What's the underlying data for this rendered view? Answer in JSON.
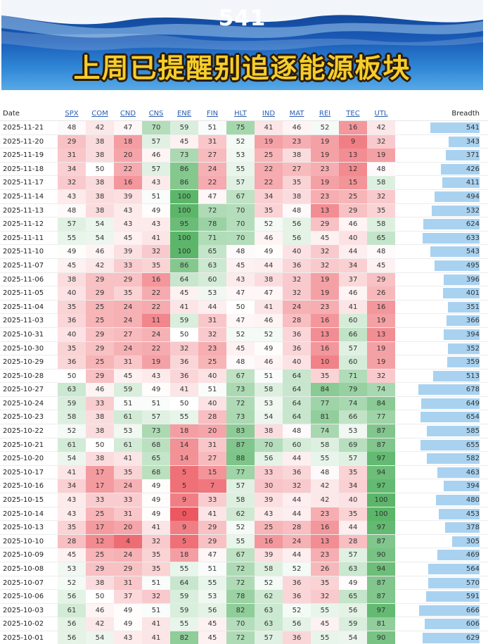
{
  "banner": {
    "number": "541",
    "title": "上周已提醒别追逐能源板块"
  },
  "table": {
    "date_header": "Date",
    "breadth_header": "Breadth",
    "columns": [
      "SPX",
      "COM",
      "CND",
      "CNS",
      "ENE",
      "FIN",
      "HLT",
      "IND",
      "MAT",
      "REI",
      "TEC",
      "UTL"
    ],
    "breadth_max": 700,
    "rows": [
      {
        "date": "2025-11-21",
        "values": [
          48,
          42,
          47,
          70,
          59,
          51,
          75,
          41,
          46,
          52,
          16,
          42
        ],
        "breadth": 541
      },
      {
        "date": "2025-11-20",
        "values": [
          29,
          38,
          18,
          57,
          45,
          31,
          52,
          19,
          23,
          19,
          9,
          32
        ],
        "breadth": 343
      },
      {
        "date": "2025-11-19",
        "values": [
          31,
          38,
          20,
          46,
          73,
          27,
          53,
          25,
          38,
          19,
          13,
          19
        ],
        "breadth": 371
      },
      {
        "date": "2025-11-18",
        "values": [
          34,
          50,
          22,
          57,
          86,
          24,
          55,
          22,
          27,
          23,
          12,
          48
        ],
        "breadth": 426
      },
      {
        "date": "2025-11-17",
        "values": [
          32,
          38,
          16,
          43,
          86,
          22,
          57,
          22,
          35,
          19,
          15,
          58
        ],
        "breadth": 411
      },
      {
        "date": "2025-11-14",
        "values": [
          43,
          38,
          39,
          51,
          100,
          47,
          67,
          34,
          38,
          23,
          25,
          32
        ],
        "breadth": 494
      },
      {
        "date": "2025-11-13",
        "values": [
          48,
          38,
          43,
          49,
          100,
          72,
          70,
          35,
          48,
          13,
          29,
          35
        ],
        "breadth": 532
      },
      {
        "date": "2025-11-12",
        "values": [
          57,
          54,
          43,
          43,
          95,
          78,
          70,
          52,
          56,
          29,
          46,
          58
        ],
        "breadth": 624
      },
      {
        "date": "2025-11-11",
        "values": [
          55,
          54,
          45,
          41,
          100,
          71,
          70,
          46,
          56,
          45,
          40,
          65
        ],
        "breadth": 633
      },
      {
        "date": "2025-11-10",
        "values": [
          49,
          46,
          39,
          32,
          100,
          65,
          48,
          49,
          40,
          32,
          44,
          48
        ],
        "breadth": 543
      },
      {
        "date": "2025-11-07",
        "values": [
          45,
          42,
          33,
          35,
          86,
          63,
          45,
          44,
          36,
          32,
          34,
          45
        ],
        "breadth": 495
      },
      {
        "date": "2025-11-06",
        "values": [
          38,
          29,
          29,
          16,
          64,
          60,
          43,
          38,
          32,
          19,
          37,
          29
        ],
        "breadth": 396
      },
      {
        "date": "2025-11-05",
        "values": [
          40,
          29,
          35,
          22,
          45,
          53,
          47,
          47,
          32,
          19,
          46,
          26
        ],
        "breadth": 401
      },
      {
        "date": "2025-11-04",
        "values": [
          35,
          25,
          24,
          22,
          41,
          44,
          50,
          41,
          24,
          23,
          41,
          16
        ],
        "breadth": 351
      },
      {
        "date": "2025-11-03",
        "values": [
          36,
          25,
          24,
          11,
          59,
          31,
          47,
          46,
          28,
          16,
          60,
          19
        ],
        "breadth": 366
      },
      {
        "date": "2025-10-31",
        "values": [
          40,
          29,
          27,
          24,
          50,
          32,
          52,
          52,
          36,
          13,
          66,
          13
        ],
        "breadth": 394
      },
      {
        "date": "2025-10-30",
        "values": [
          35,
          29,
          24,
          22,
          32,
          23,
          45,
          49,
          36,
          16,
          57,
          19
        ],
        "breadth": 352
      },
      {
        "date": "2025-10-29",
        "values": [
          36,
          25,
          31,
          19,
          36,
          25,
          48,
          46,
          40,
          10,
          60,
          19
        ],
        "breadth": 359
      },
      {
        "date": "2025-10-28",
        "values": [
          50,
          29,
          45,
          43,
          36,
          40,
          67,
          51,
          64,
          35,
          71,
          32
        ],
        "breadth": 513
      },
      {
        "date": "2025-10-27",
        "values": [
          63,
          46,
          59,
          49,
          41,
          51,
          73,
          58,
          64,
          84,
          79,
          74
        ],
        "breadth": 678
      },
      {
        "date": "2025-10-24",
        "values": [
          59,
          33,
          51,
          51,
          50,
          40,
          72,
          53,
          64,
          77,
          74,
          84
        ],
        "breadth": 649
      },
      {
        "date": "2025-10-23",
        "values": [
          58,
          38,
          61,
          57,
          55,
          28,
          73,
          54,
          64,
          81,
          66,
          77
        ],
        "breadth": 654
      },
      {
        "date": "2025-10-22",
        "values": [
          52,
          38,
          53,
          73,
          18,
          20,
          83,
          38,
          48,
          74,
          53,
          87
        ],
        "breadth": 585
      },
      {
        "date": "2025-10-21",
        "values": [
          61,
          50,
          61,
          68,
          14,
          31,
          87,
          70,
          60,
          58,
          69,
          87
        ],
        "breadth": 655
      },
      {
        "date": "2025-10-20",
        "values": [
          54,
          38,
          41,
          65,
          14,
          27,
          88,
          56,
          44,
          55,
          57,
          97
        ],
        "breadth": 582
      },
      {
        "date": "2025-10-17",
        "values": [
          41,
          17,
          35,
          68,
          5,
          15,
          77,
          33,
          36,
          48,
          35,
          94
        ],
        "breadth": 463
      },
      {
        "date": "2025-10-16",
        "values": [
          34,
          17,
          24,
          49,
          5,
          7,
          57,
          30,
          32,
          42,
          34,
          97
        ],
        "breadth": 394
      },
      {
        "date": "2025-10-15",
        "values": [
          43,
          33,
          33,
          49,
          9,
          33,
          58,
          39,
          44,
          42,
          40,
          100
        ],
        "breadth": 480
      },
      {
        "date": "2025-10-14",
        "values": [
          43,
          25,
          31,
          49,
          0,
          41,
          62,
          43,
          44,
          23,
          35,
          100
        ],
        "breadth": 453
      },
      {
        "date": "2025-10-13",
        "values": [
          35,
          17,
          20,
          41,
          9,
          29,
          52,
          25,
          28,
          16,
          44,
          97
        ],
        "breadth": 378
      },
      {
        "date": "2025-10-10",
        "values": [
          28,
          12,
          4,
          32,
          5,
          29,
          55,
          16,
          24,
          13,
          28,
          87
        ],
        "breadth": 305
      },
      {
        "date": "2025-10-09",
        "values": [
          45,
          25,
          24,
          35,
          18,
          47,
          67,
          39,
          44,
          23,
          57,
          90
        ],
        "breadth": 469
      },
      {
        "date": "2025-10-08",
        "values": [
          53,
          29,
          29,
          35,
          55,
          51,
          72,
          58,
          52,
          26,
          63,
          94
        ],
        "breadth": 564
      },
      {
        "date": "2025-10-07",
        "values": [
          52,
          38,
          31,
          51,
          64,
          55,
          72,
          52,
          36,
          35,
          49,
          87
        ],
        "breadth": 570
      },
      {
        "date": "2025-10-06",
        "values": [
          56,
          50,
          37,
          32,
          59,
          53,
          78,
          62,
          36,
          32,
          65,
          87
        ],
        "breadth": 591
      },
      {
        "date": "2025-10-03",
        "values": [
          61,
          46,
          49,
          51,
          59,
          56,
          82,
          63,
          52,
          55,
          56,
          97
        ],
        "breadth": 666
      },
      {
        "date": "2025-10-02",
        "values": [
          56,
          42,
          49,
          41,
          55,
          45,
          70,
          63,
          56,
          45,
          59,
          81
        ],
        "breadth": 606
      },
      {
        "date": "2025-10-01",
        "values": [
          56,
          54,
          43,
          41,
          82,
          45,
          72,
          57,
          36,
          55,
          54,
          90
        ],
        "breadth": 629
      }
    ]
  }
}
